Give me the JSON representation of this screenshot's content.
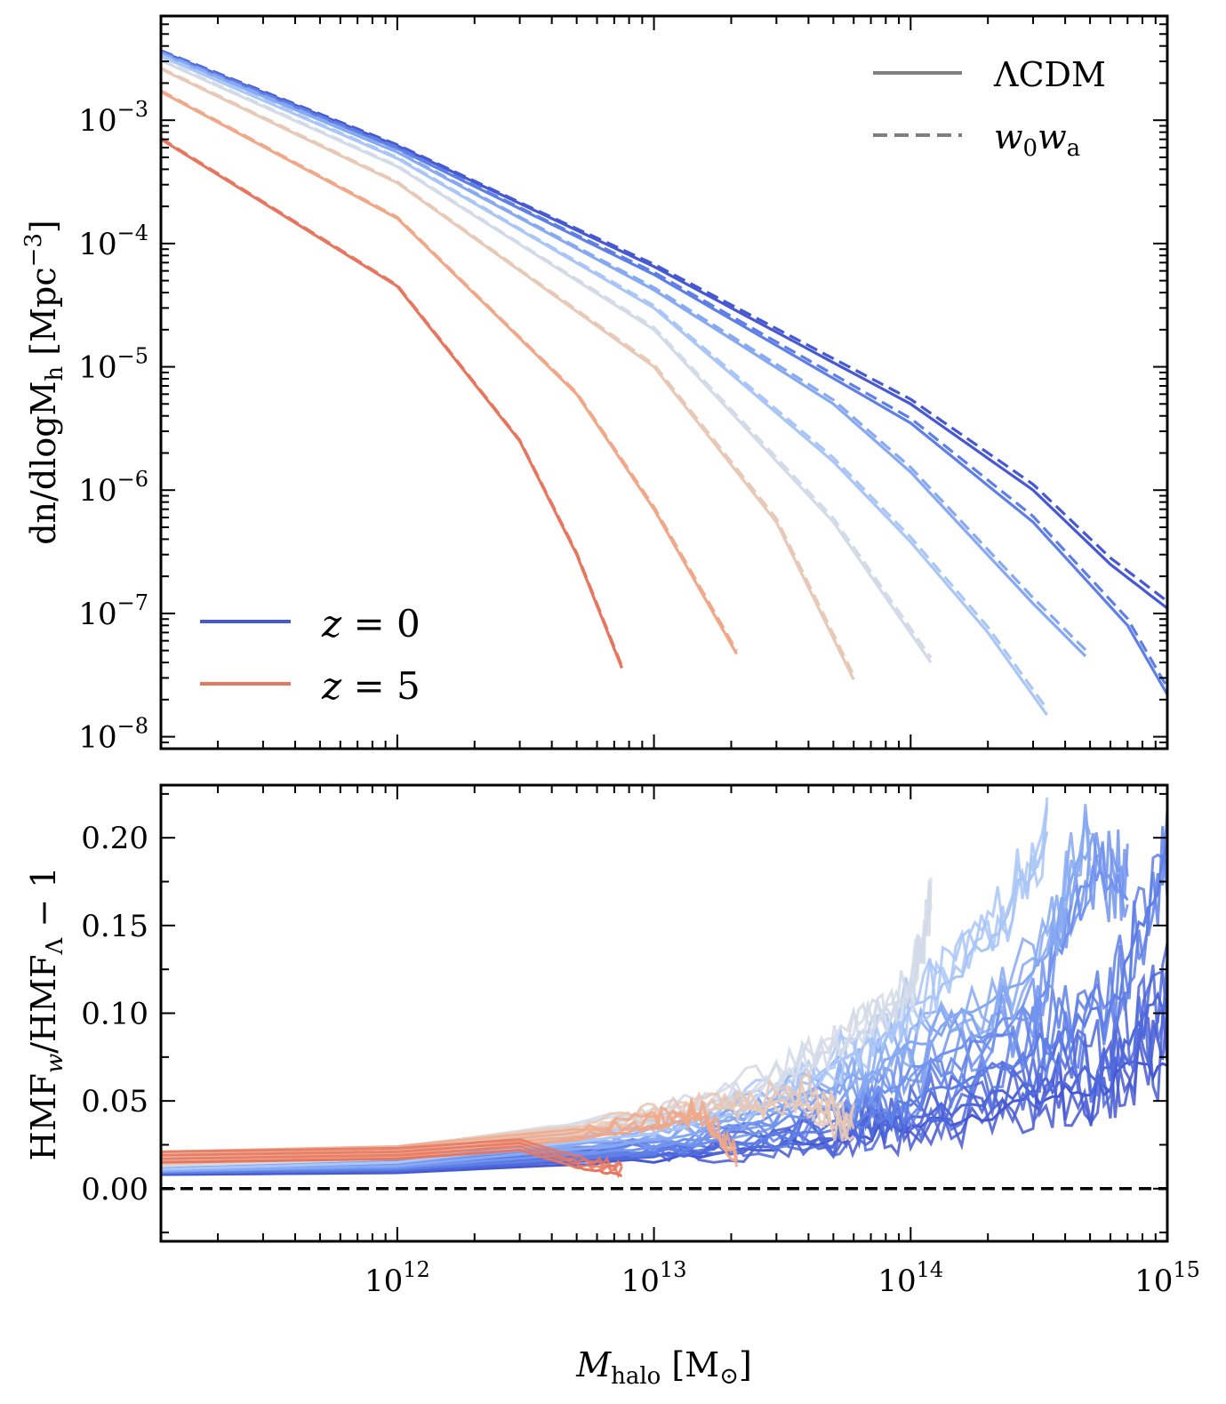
{
  "chart_data": [
    {
      "type": "line",
      "panel": "top",
      "xscale": "log",
      "yscale": "log",
      "xlim": [
        120000000000.0,
        1000000000000000.0
      ],
      "ylim": [
        8e-09,
        0.007
      ],
      "xticks": [
        1000000000000.0,
        10000000000000.0,
        100000000000000.0,
        1000000000000000.0
      ],
      "yticks": [
        1e-08,
        1e-07,
        1e-06,
        1e-05,
        0.0001,
        0.001
      ],
      "ytick_labels": [
        "10",
        "10",
        "10",
        "10",
        "10",
        "10"
      ],
      "ytick_exponents": [
        "−8",
        "−7",
        "−6",
        "−5",
        "−4",
        "−3"
      ],
      "ylabel_main": "dn/dlogM",
      "ylabel_sub": "h",
      "ylabel_units": " [Mpc",
      "ylabel_exp": "−3",
      "ylabel_close": "]",
      "legend_style": {
        "solid_label": "ΛCDM",
        "dashed_label_w": "w",
        "dashed_label_sub0": "0",
        "dashed_label_w2": "w",
        "dashed_label_suba": "a",
        "placement": "top-right"
      },
      "legend_redshift": {
        "entries": [
          {
            "label_var": "z",
            "label_eq": " = 0",
            "color": "#4659d2"
          },
          {
            "label_var": "z",
            "label_eq": " = 5",
            "color": "#e7765f"
          }
        ],
        "placement": "lower-left"
      },
      "series": [
        {
          "name": "z0",
          "color": "#4659d2",
          "x": [
            120000000000.0,
            1000000000000.0,
            10000000000000.0,
            100000000000000.0,
            300000000000000.0,
            600000000000000.0,
            1000000000000000.0
          ],
          "y": [
            0.0036,
            0.00062,
            6.5e-05,
            5e-06,
            1e-06,
            2.5e-07,
            1.1e-07
          ]
        },
        {
          "name": "z0.5",
          "color": "#5e7fe6",
          "x": [
            120000000000.0,
            1000000000000.0,
            10000000000000.0,
            100000000000000.0,
            300000000000000.0,
            700000000000000.0,
            1000000000000000.0
          ],
          "y": [
            0.00355,
            0.00059,
            5.6e-05,
            3.5e-06,
            5.5e-07,
            8e-08,
            2.2e-08
          ]
        },
        {
          "name": "z1",
          "color": "#86a9f2",
          "x": [
            120000000000.0,
            1000000000000.0,
            10000000000000.0,
            50000000000000.0,
            100000000000000.0,
            300000000000000.0,
            480000000000000.0
          ],
          "y": [
            0.00345,
            0.00055,
            4.2e-05,
            5e-06,
            1.4e-06,
            1.2e-07,
            4.5e-08
          ]
        },
        {
          "name": "z1.5",
          "color": "#a9c6f7",
          "x": [
            120000000000.0,
            1000000000000.0,
            10000000000000.0,
            50000000000000.0,
            100000000000000.0,
            200000000000000.0,
            340000000000000.0
          ],
          "y": [
            0.0033,
            0.00049,
            3e-05,
            1.7e-06,
            3.8e-07,
            7e-08,
            1.5e-08
          ]
        },
        {
          "name": "z2",
          "color": "#d3dbe8",
          "x": [
            120000000000.0,
            1000000000000.0,
            10000000000000.0,
            50000000000000.0,
            120000000000000.0
          ],
          "y": [
            0.00305,
            0.00042,
            2e-05,
            5.5e-07,
            4e-08
          ]
        },
        {
          "name": "z3",
          "color": "#e8c8b6",
          "x": [
            120000000000.0,
            1000000000000.0,
            10000000000000.0,
            30000000000000.0,
            60000000000000.0
          ],
          "y": [
            0.0026,
            0.00031,
            1e-05,
            5.5e-07,
            2.9e-08
          ]
        },
        {
          "name": "z4",
          "color": "#f0a888",
          "x": [
            120000000000.0,
            1000000000000.0,
            5000000000000.0,
            10000000000000.0,
            21000000000000.0
          ],
          "y": [
            0.0017,
            0.00016,
            6e-06,
            7e-07,
            4.7e-08
          ]
        },
        {
          "name": "z5",
          "color": "#e7765f",
          "x": [
            120000000000.0,
            1000000000000.0,
            3000000000000.0,
            5000000000000.0,
            7500000000000.0
          ],
          "y": [
            0.0007,
            4.5e-05,
            2.5e-06,
            3e-07,
            3.6e-08
          ]
        }
      ]
    },
    {
      "type": "line",
      "panel": "bottom",
      "xscale": "log",
      "yscale": "linear",
      "xlim": [
        120000000000.0,
        1000000000000000.0
      ],
      "ylim": [
        -0.03,
        0.23
      ],
      "xticks": [
        1000000000000.0,
        10000000000000.0,
        100000000000000.0,
        1000000000000000.0
      ],
      "xtick_labels": [
        "10",
        "10",
        "10",
        "10"
      ],
      "xtick_exponents": [
        "12",
        "13",
        "14",
        "15"
      ],
      "yticks": [
        0.0,
        0.05,
        0.1,
        0.15,
        0.2
      ],
      "ytick_labels": [
        "0.00",
        "0.05",
        "0.10",
        "0.15",
        "0.20"
      ],
      "ylabel_a": "HMF",
      "ylabel_sub_a": "w",
      "ylabel_b": "/HMF",
      "ylabel_sub_b": "Λ",
      "ylabel_c": " − 1",
      "xlabel_main": "M",
      "xlabel_sub": "halo",
      "xlabel_units": " [M",
      "xlabel_sub2": "⊙",
      "xlabel_close": "]",
      "reference_line": {
        "y": 0.0,
        "style": "dashed",
        "color": "#000000"
      },
      "series": [
        {
          "name": "z0",
          "color": "#4659d2",
          "x": [
            120000000000.0,
            1000000000000.0,
            10000000000000.0,
            50000000000000.0,
            100000000000000.0,
            300000000000000.0,
            600000000000000.0,
            1000000000000000.0
          ],
          "y": [
            0.008,
            0.009,
            0.016,
            0.028,
            0.035,
            0.05,
            0.06,
            0.075
          ]
        },
        {
          "name": "z0.25",
          "color": "#4f68dc",
          "x": [
            120000000000.0,
            1000000000000.0,
            10000000000000.0,
            50000000000000.0,
            100000000000000.0,
            300000000000000.0,
            600000000000000.0,
            1000000000000000.0
          ],
          "y": [
            0.009,
            0.01,
            0.018,
            0.03,
            0.04,
            0.058,
            0.07,
            0.11
          ]
        },
        {
          "name": "z0.5",
          "color": "#5e7fe6",
          "x": [
            120000000000.0,
            1000000000000.0,
            10000000000000.0,
            50000000000000.0,
            100000000000000.0,
            300000000000000.0,
            600000000000000.0,
            1000000000000000.0
          ],
          "y": [
            0.009,
            0.011,
            0.02,
            0.035,
            0.05,
            0.08,
            0.1,
            0.19
          ]
        },
        {
          "name": "z0.75",
          "color": "#7294ee",
          "x": [
            120000000000.0,
            1000000000000.0,
            10000000000000.0,
            50000000000000.0,
            100000000000000.0,
            300000000000000.0,
            500000000000000.0,
            700000000000000.0
          ],
          "y": [
            0.01,
            0.012,
            0.023,
            0.045,
            0.065,
            0.1,
            0.18,
            0.17
          ]
        },
        {
          "name": "z1",
          "color": "#86a9f2",
          "x": [
            120000000000.0,
            1000000000000.0,
            10000000000000.0,
            50000000000000.0,
            100000000000000.0,
            300000000000000.0,
            500000000000000.0
          ],
          "y": [
            0.01,
            0.013,
            0.027,
            0.055,
            0.08,
            0.12,
            0.2
          ]
        },
        {
          "name": "z1.5",
          "color": "#a9c6f7",
          "x": [
            120000000000.0,
            1000000000000.0,
            10000000000000.0,
            30000000000000.0,
            60000000000000.0,
            100000000000000.0,
            200000000000000.0,
            340000000000000.0
          ],
          "y": [
            0.011,
            0.015,
            0.032,
            0.05,
            0.075,
            0.1,
            0.14,
            0.2
          ]
        },
        {
          "name": "z2",
          "color": "#d3dbe8",
          "x": [
            120000000000.0,
            1000000000000.0,
            10000000000000.0,
            30000000000000.0,
            60000000000000.0,
            100000000000000.0,
            120000000000000.0
          ],
          "y": [
            0.013,
            0.017,
            0.038,
            0.06,
            0.085,
            0.11,
            0.16
          ]
        },
        {
          "name": "z3",
          "color": "#e8c8b6",
          "x": [
            120000000000.0,
            1000000000000.0,
            5000000000000.0,
            10000000000000.0,
            20000000000000.0,
            40000000000000.0,
            60000000000000.0
          ],
          "y": [
            0.014,
            0.018,
            0.03,
            0.04,
            0.045,
            0.05,
            0.03
          ]
        },
        {
          "name": "z4",
          "color": "#f0a888",
          "x": [
            120000000000.0,
            1000000000000.0,
            5000000000000.0,
            10000000000000.0,
            15000000000000.0,
            21000000000000.0
          ],
          "y": [
            0.015,
            0.018,
            0.028,
            0.035,
            0.04,
            0.015
          ]
        },
        {
          "name": "z5",
          "color": "#e7765f",
          "x": [
            120000000000.0,
            1000000000000.0,
            3000000000000.0,
            5000000000000.0,
            7500000000000.0
          ],
          "y": [
            0.015,
            0.017,
            0.022,
            0.012,
            0.008
          ]
        }
      ]
    }
  ]
}
